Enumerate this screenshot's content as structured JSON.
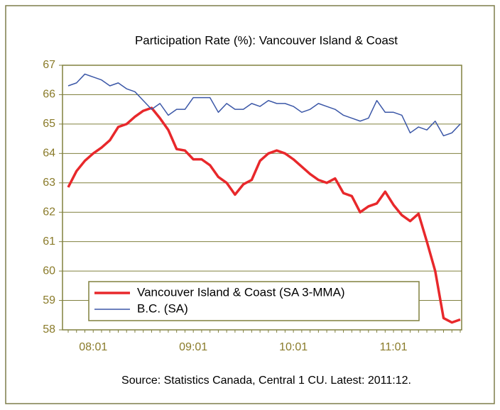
{
  "chart_data": {
    "type": "line",
    "title": "Participation Rate (%): Vancouver Island & Coast",
    "source": "Source: Statistics Canada, Central 1 CU. Latest: 2011:12.",
    "categories": [
      null,
      null,
      null,
      "08:01",
      null,
      null,
      null,
      null,
      null,
      null,
      null,
      null,
      null,
      null,
      null,
      "09:01",
      null,
      null,
      null,
      null,
      null,
      null,
      null,
      null,
      null,
      null,
      null,
      "10:01",
      null,
      null,
      null,
      null,
      null,
      null,
      null,
      null,
      null,
      null,
      null,
      "11:01",
      null,
      null,
      null,
      null,
      null,
      null,
      null,
      null
    ],
    "series": [
      {
        "name": "Vancouver Island & Coast (SA 3-MMA)",
        "color": "#e8282b",
        "width": 3.5,
        "values": [
          62.85,
          63.4,
          63.75,
          64.0,
          64.2,
          64.45,
          64.9,
          65.0,
          65.25,
          65.45,
          65.55,
          65.2,
          64.8,
          64.15,
          64.1,
          63.8,
          63.8,
          63.6,
          63.2,
          63.0,
          62.6,
          62.95,
          63.1,
          63.75,
          64.0,
          64.1,
          64.0,
          63.8,
          63.55,
          63.3,
          63.1,
          63.0,
          63.15,
          62.65,
          62.55,
          62.0,
          62.2,
          62.3,
          62.7,
          62.25,
          61.9,
          61.7,
          61.95,
          61.0,
          60.0,
          58.4,
          58.25,
          58.35
        ]
      },
      {
        "name": "B.C. (SA)",
        "color": "#3b57a7",
        "width": 1.5,
        "values": [
          66.3,
          66.4,
          66.7,
          66.6,
          66.5,
          66.3,
          66.4,
          66.2,
          66.1,
          65.8,
          65.5,
          65.7,
          65.3,
          65.5,
          65.5,
          65.9,
          65.9,
          65.9,
          65.4,
          65.7,
          65.5,
          65.5,
          65.7,
          65.6,
          65.8,
          65.7,
          65.7,
          65.6,
          65.4,
          65.5,
          65.7,
          65.6,
          65.5,
          65.3,
          65.2,
          65.1,
          65.2,
          65.8,
          65.4,
          65.4,
          65.3,
          64.7,
          64.9,
          64.8,
          65.1,
          64.6,
          64.7,
          65.0
        ]
      }
    ],
    "ylim": [
      58,
      67
    ],
    "yticks": [
      58,
      59,
      60,
      61,
      62,
      63,
      64,
      65,
      66,
      67
    ],
    "grid": true,
    "legend": "bottom-left"
  }
}
